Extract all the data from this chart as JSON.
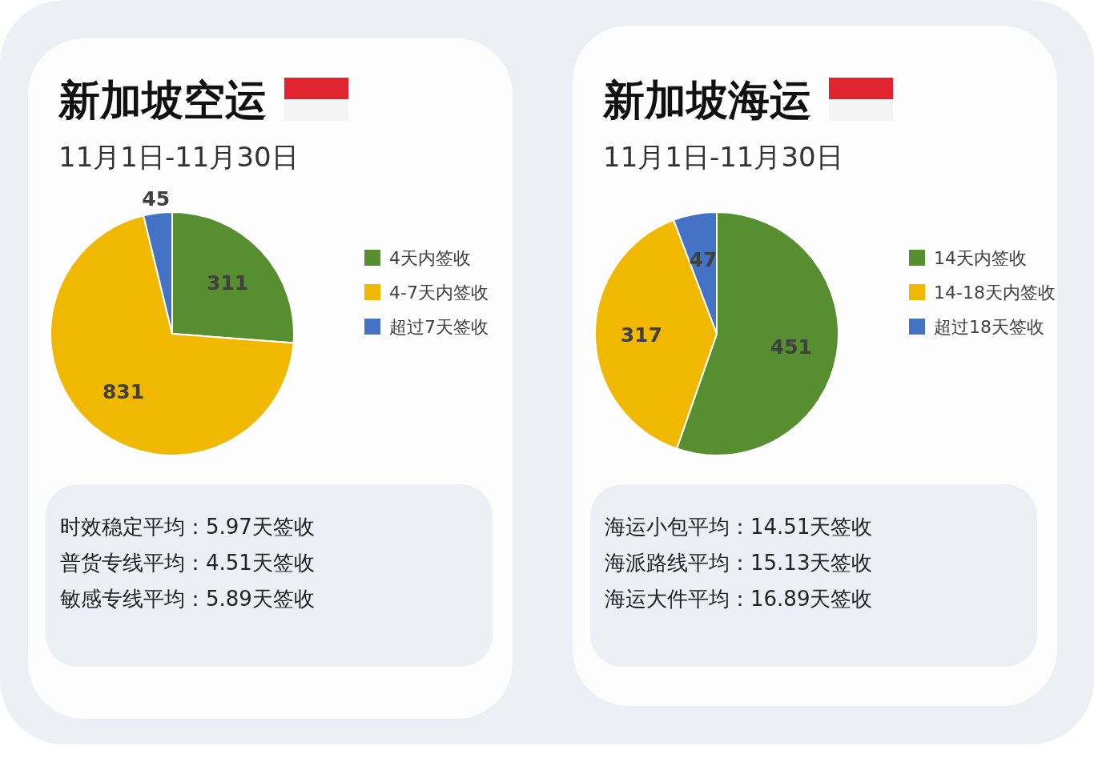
{
  "chart_data": [
    {
      "type": "pie",
      "title": "新加坡空运",
      "subtitle": "11月1日-11月30日",
      "categories": [
        "4天内签收",
        "4-7天内签收",
        "超过7天签收"
      ],
      "values": [
        311,
        831,
        45
      ],
      "colors": [
        "#568e30",
        "#f0b800",
        "#4472c4"
      ],
      "data_labels": true,
      "legend": "right",
      "annotations": [
        "时效稳定平均：5.97天签收",
        "普货专线平均：4.51天签收",
        "敏感专线平均：5.89天签收"
      ]
    },
    {
      "type": "pie",
      "title": "新加坡海运",
      "subtitle": "11月1日-11月30日",
      "categories": [
        "14天内签收",
        "14-18天内签收",
        "超过18天签收"
      ],
      "values": [
        451,
        317,
        47
      ],
      "colors": [
        "#568e30",
        "#f0b800",
        "#4472c4"
      ],
      "data_labels": true,
      "legend": "right",
      "annotations": [
        "海运小包平均：14.51天签收",
        "海派路线平均：15.13天签收",
        "海运大件平均：16.89天签收"
      ]
    }
  ]
}
